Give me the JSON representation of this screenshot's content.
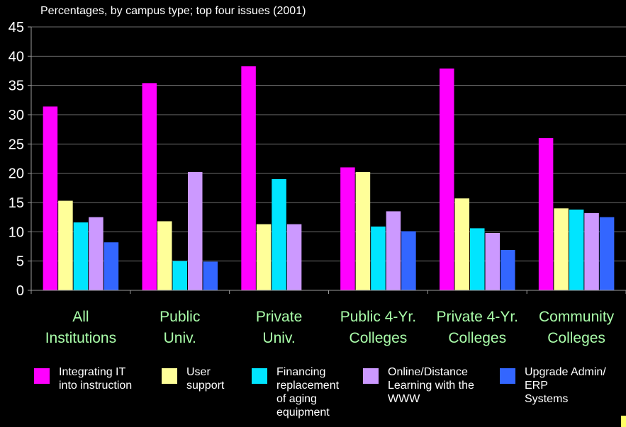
{
  "chart_data": {
    "type": "bar",
    "title": "Percentages, by campus type; top four issues (2001)",
    "categories": [
      [
        "All",
        "Institutions"
      ],
      [
        "Public",
        "Univ."
      ],
      [
        "Private",
        "Univ."
      ],
      [
        "Public 4-Yr.",
        "Colleges"
      ],
      [
        "Private 4-Yr.",
        "Colleges"
      ],
      [
        "Community",
        "Colleges"
      ]
    ],
    "ylim": [
      0,
      45
    ],
    "yticks": [
      0,
      5,
      10,
      15,
      20,
      25,
      30,
      35,
      40,
      45
    ],
    "grid": true,
    "legend_position": "bottom",
    "series": [
      {
        "name": "Integrating IT\ninto instruction",
        "color": "#ff00ff",
        "values": [
          31.4,
          35.4,
          38.3,
          21.0,
          37.9,
          26.0
        ]
      },
      {
        "name": "User\nsupport",
        "color": "#ffff99",
        "values": [
          15.3,
          11.8,
          11.3,
          20.2,
          15.7,
          14.0
        ]
      },
      {
        "name": "Financing\nreplacement\nof aging\nequipment",
        "color": "#00e5ff",
        "values": [
          11.6,
          5.0,
          19.0,
          10.9,
          10.6,
          13.8
        ]
      },
      {
        "name": "Online/Distance\nLearning with the\nWWW",
        "color": "#cc99ff",
        "values": [
          12.5,
          20.2,
          11.3,
          13.5,
          9.8,
          13.2
        ]
      },
      {
        "name": "Upgrade Admin/\nERP\nSystems",
        "color": "#3366ff",
        "values": [
          8.2,
          4.9,
          null,
          10.1,
          6.9,
          12.5
        ]
      }
    ]
  }
}
